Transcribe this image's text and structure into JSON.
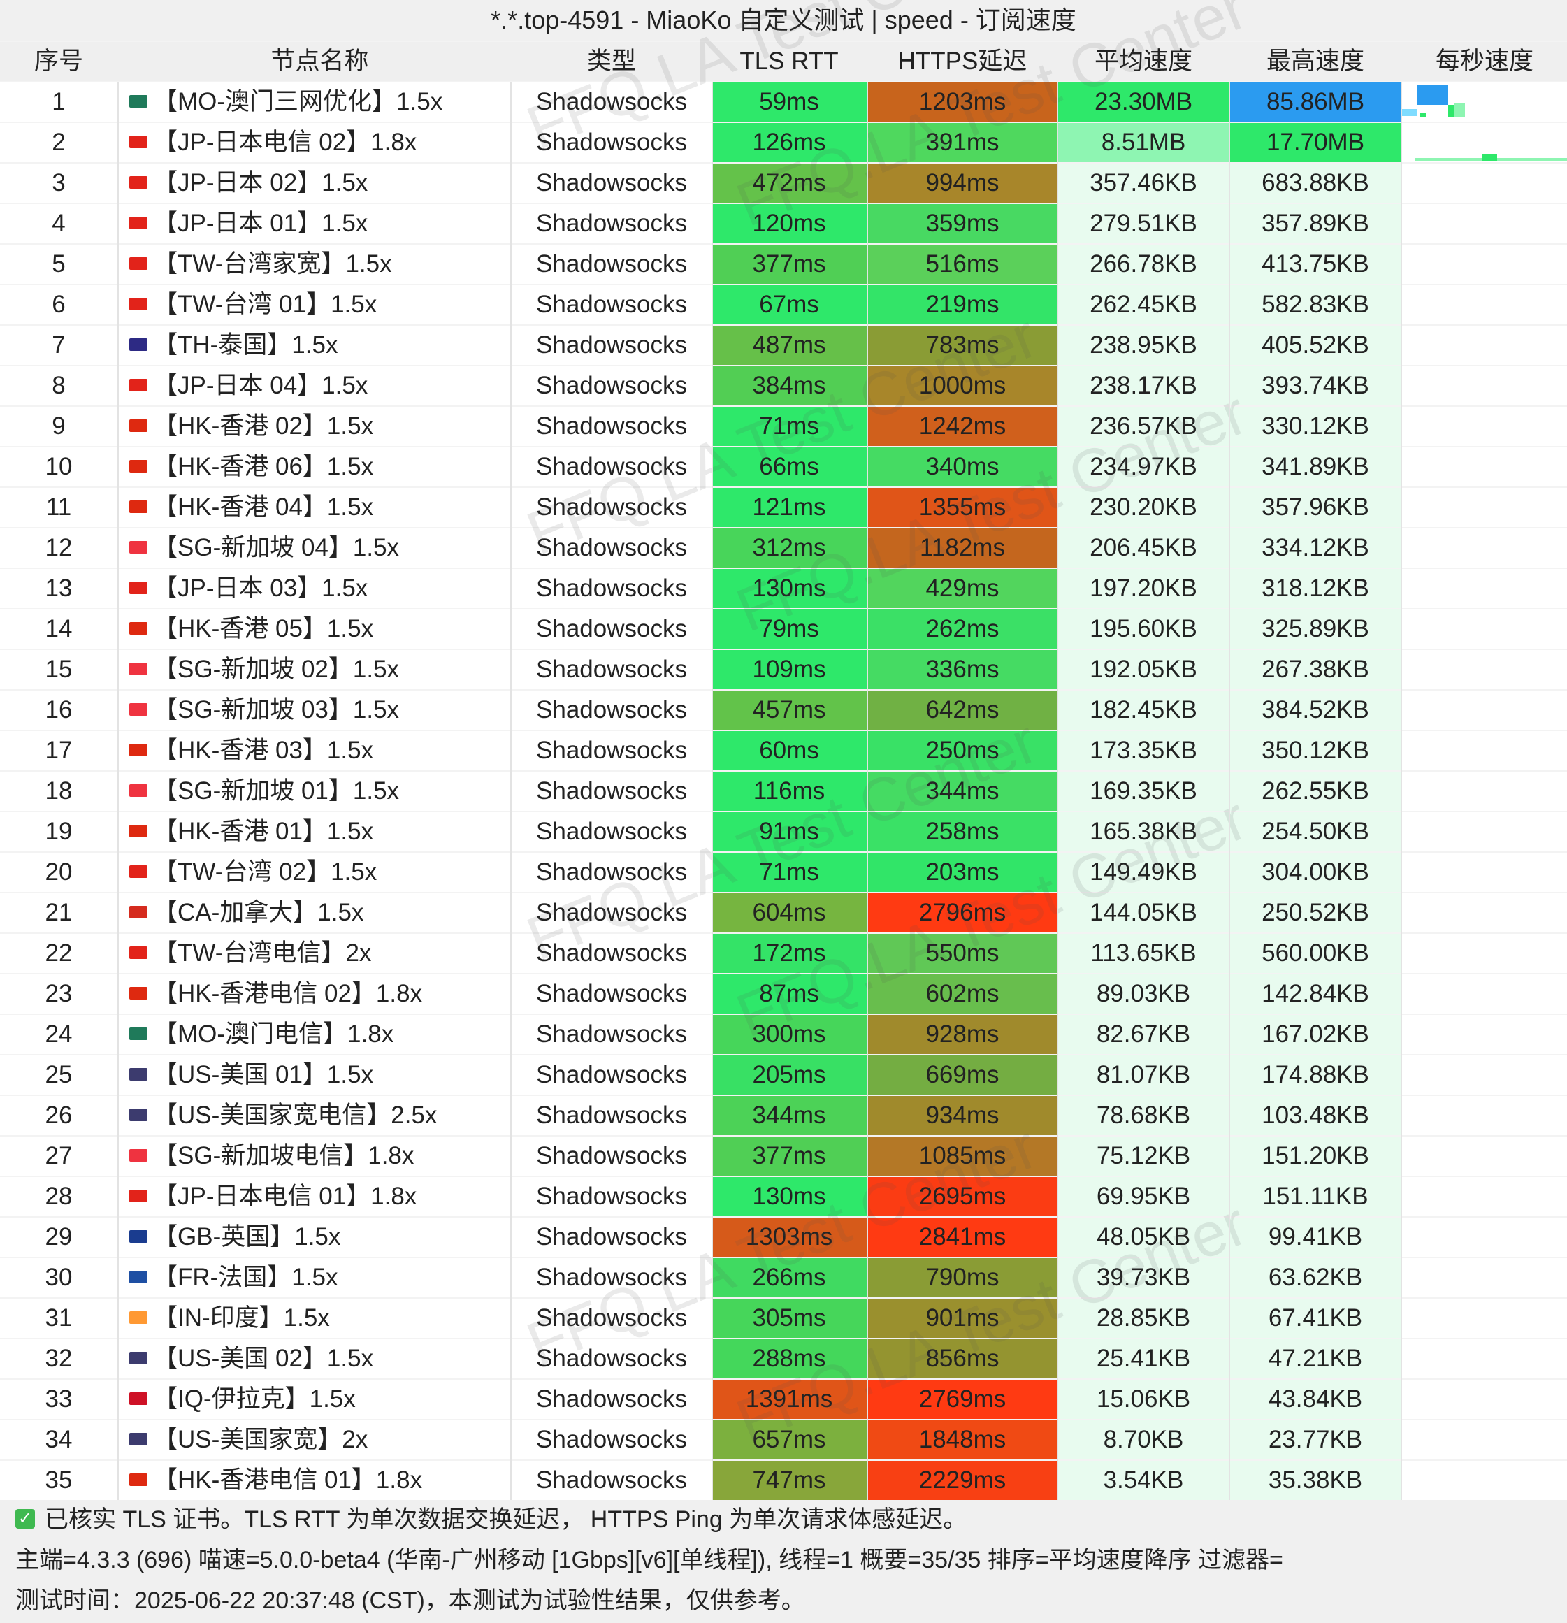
{
  "title": "*.*.top-4591 - MiaoKo 自定义测试 | speed - 订阅速度",
  "columns": {
    "idx": "序号",
    "name": "节点名称",
    "type": "类型",
    "tls": "TLS RTT",
    "https": "HTTPS延迟",
    "avg": "平均速度",
    "max": "最高速度",
    "spark": "每秒速度"
  },
  "flag_colors": {
    "MO": "#1f7a5a",
    "JP": "#e2231a",
    "TW": "#e2231a",
    "TH": "#2d2a84",
    "HK": "#de2910",
    "SG": "#ef3340",
    "CA": "#d52b1e",
    "US": "#3c3b6e",
    "GB": "#1a3c8f",
    "FR": "#1e4fa3",
    "IN": "#ff9933",
    "IQ": "#ce1126"
  },
  "rows": [
    {
      "idx": "1",
      "flag": "MO",
      "name": "【MO-澳门三网优化】1.5x",
      "type": "Shadowsocks",
      "tls": "59ms",
      "https": "1203ms",
      "avg": "23.30MB",
      "max": "85.86MB",
      "tls_color": "#2ee86a",
      "https_color": "#c8641c",
      "avg_color": "#2ee86a",
      "max_color": "#2b9bf0"
    },
    {
      "idx": "2",
      "flag": "JP",
      "name": "【JP-日本电信 02】1.8x",
      "type": "Shadowsocks",
      "tls": "126ms",
      "https": "391ms",
      "avg": "8.51MB",
      "max": "17.70MB",
      "tls_color": "#2ee86a",
      "https_color": "#4fd85e",
      "avg_color": "#8ef5b2",
      "max_color": "#2ee86a"
    },
    {
      "idx": "3",
      "flag": "JP",
      "name": "【JP-日本 02】1.5x",
      "type": "Shadowsocks",
      "tls": "472ms",
      "https": "994ms",
      "avg": "357.46KB",
      "max": "683.88KB",
      "tls_color": "#64c24a",
      "https_color": "#a8862a",
      "avg_color": "#e8fbef",
      "max_color": "#e8fbef"
    },
    {
      "idx": "4",
      "flag": "JP",
      "name": "【JP-日本 01】1.5x",
      "type": "Shadowsocks",
      "tls": "120ms",
      "https": "359ms",
      "avg": "279.51KB",
      "max": "357.89KB",
      "tls_color": "#2ee86a",
      "https_color": "#48d962",
      "avg_color": "#e8fbef",
      "max_color": "#e8fbef"
    },
    {
      "idx": "5",
      "flag": "TW",
      "name": "【TW-台湾家宽】1.5x",
      "type": "Shadowsocks",
      "tls": "377ms",
      "https": "516ms",
      "avg": "266.78KB",
      "max": "413.75KB",
      "tls_color": "#50cf55",
      "https_color": "#5bd05a",
      "avg_color": "#e8fbef",
      "max_color": "#e8fbef"
    },
    {
      "idx": "6",
      "flag": "TW",
      "name": "【TW-台湾 01】1.5x",
      "type": "Shadowsocks",
      "tls": "67ms",
      "https": "219ms",
      "avg": "262.45KB",
      "max": "582.83KB",
      "tls_color": "#2ee86a",
      "https_color": "#33e468",
      "avg_color": "#e8fbef",
      "max_color": "#e8fbef"
    },
    {
      "idx": "7",
      "flag": "TH",
      "name": "【TH-泰国】1.5x",
      "type": "Shadowsocks",
      "tls": "487ms",
      "https": "783ms",
      "avg": "238.95KB",
      "max": "405.52KB",
      "tls_color": "#66c049",
      "https_color": "#8a9c35",
      "avg_color": "#e8fbef",
      "max_color": "#e8fbef"
    },
    {
      "idx": "8",
      "flag": "JP",
      "name": "【JP-日本 04】1.5x",
      "type": "Shadowsocks",
      "tls": "384ms",
      "https": "1000ms",
      "avg": "238.17KB",
      "max": "393.74KB",
      "tls_color": "#52ce54",
      "https_color": "#a8862a",
      "avg_color": "#e8fbef",
      "max_color": "#e8fbef"
    },
    {
      "idx": "9",
      "flag": "HK",
      "name": "【HK-香港 02】1.5x",
      "type": "Shadowsocks",
      "tls": "71ms",
      "https": "1242ms",
      "avg": "236.57KB",
      "max": "330.12KB",
      "tls_color": "#2ee86a",
      "https_color": "#d0601c",
      "avg_color": "#e8fbef",
      "max_color": "#e8fbef"
    },
    {
      "idx": "10",
      "flag": "HK",
      "name": "【HK-香港 06】1.5x",
      "type": "Shadowsocks",
      "tls": "66ms",
      "https": "340ms",
      "avg": "234.97KB",
      "max": "341.89KB",
      "tls_color": "#2ee86a",
      "https_color": "#45db63",
      "avg_color": "#e8fbef",
      "max_color": "#e8fbef"
    },
    {
      "idx": "11",
      "flag": "HK",
      "name": "【HK-香港 04】1.5x",
      "type": "Shadowsocks",
      "tls": "121ms",
      "https": "1355ms",
      "avg": "230.20KB",
      "max": "357.96KB",
      "tls_color": "#2ee86a",
      "https_color": "#e05518",
      "avg_color": "#e8fbef",
      "max_color": "#e8fbef"
    },
    {
      "idx": "12",
      "flag": "SG",
      "name": "【SG-新加坡 04】1.5x",
      "type": "Shadowsocks",
      "tls": "312ms",
      "https": "1182ms",
      "avg": "206.45KB",
      "max": "334.12KB",
      "tls_color": "#48d55a",
      "https_color": "#c4661e",
      "avg_color": "#e8fbef",
      "max_color": "#e8fbef"
    },
    {
      "idx": "13",
      "flag": "JP",
      "name": "【JP-日本 03】1.5x",
      "type": "Shadowsocks",
      "tls": "130ms",
      "https": "429ms",
      "avg": "197.20KB",
      "max": "318.12KB",
      "tls_color": "#2ee86a",
      "https_color": "#52d55d",
      "avg_color": "#e8fbef",
      "max_color": "#e8fbef"
    },
    {
      "idx": "14",
      "flag": "HK",
      "name": "【HK-香港 05】1.5x",
      "type": "Shadowsocks",
      "tls": "79ms",
      "https": "262ms",
      "avg": "195.60KB",
      "max": "325.89KB",
      "tls_color": "#2ee86a",
      "https_color": "#3be066",
      "avg_color": "#e8fbef",
      "max_color": "#e8fbef"
    },
    {
      "idx": "15",
      "flag": "SG",
      "name": "【SG-新加坡 02】1.5x",
      "type": "Shadowsocks",
      "tls": "109ms",
      "https": "336ms",
      "avg": "192.05KB",
      "max": "267.38KB",
      "tls_color": "#2ee86a",
      "https_color": "#45db63",
      "avg_color": "#e8fbef",
      "max_color": "#e8fbef"
    },
    {
      "idx": "16",
      "flag": "SG",
      "name": "【SG-新加坡 03】1.5x",
      "type": "Shadowsocks",
      "tls": "457ms",
      "https": "642ms",
      "avg": "182.45KB",
      "max": "384.52KB",
      "tls_color": "#62c34a",
      "https_color": "#70b144",
      "avg_color": "#e8fbef",
      "max_color": "#e8fbef"
    },
    {
      "idx": "17",
      "flag": "HK",
      "name": "【HK-香港 03】1.5x",
      "type": "Shadowsocks",
      "tls": "60ms",
      "https": "250ms",
      "avg": "173.35KB",
      "max": "350.12KB",
      "tls_color": "#2ee86a",
      "https_color": "#39e166",
      "avg_color": "#e8fbef",
      "max_color": "#e8fbef"
    },
    {
      "idx": "18",
      "flag": "SG",
      "name": "【SG-新加坡 01】1.5x",
      "type": "Shadowsocks",
      "tls": "116ms",
      "https": "344ms",
      "avg": "169.35KB",
      "max": "262.55KB",
      "tls_color": "#2ee86a",
      "https_color": "#45db63",
      "avg_color": "#e8fbef",
      "max_color": "#e8fbef"
    },
    {
      "idx": "19",
      "flag": "HK",
      "name": "【HK-香港 01】1.5x",
      "type": "Shadowsocks",
      "tls": "91ms",
      "https": "258ms",
      "avg": "165.38KB",
      "max": "254.50KB",
      "tls_color": "#2ee86a",
      "https_color": "#3ae166",
      "avg_color": "#e8fbef",
      "max_color": "#e8fbef"
    },
    {
      "idx": "20",
      "flag": "TW",
      "name": "【TW-台湾 02】1.5x",
      "type": "Shadowsocks",
      "tls": "71ms",
      "https": "203ms",
      "avg": "149.49KB",
      "max": "304.00KB",
      "tls_color": "#2ee86a",
      "https_color": "#31e568",
      "avg_color": "#e8fbef",
      "max_color": "#e8fbef"
    },
    {
      "idx": "21",
      "flag": "CA",
      "name": "【CA-加拿大】1.5x",
      "type": "Shadowsocks",
      "tls": "604ms",
      "https": "2796ms",
      "avg": "144.05KB",
      "max": "250.52KB",
      "tls_color": "#76b540",
      "https_color": "#ff3a12",
      "avg_color": "#e8fbef",
      "max_color": "#e8fbef"
    },
    {
      "idx": "22",
      "flag": "TW",
      "name": "【TW-台湾电信】2x",
      "type": "Shadowsocks",
      "tls": "172ms",
      "https": "550ms",
      "avg": "113.65KB",
      "max": "560.00KB",
      "tls_color": "#34e367",
      "https_color": "#60c856",
      "avg_color": "#e8fbef",
      "max_color": "#e8fbef"
    },
    {
      "idx": "23",
      "flag": "HK",
      "name": "【HK-香港电信 02】1.8x",
      "type": "Shadowsocks",
      "tls": "87ms",
      "https": "602ms",
      "avg": "89.03KB",
      "max": "142.84KB",
      "tls_color": "#2ee86a",
      "https_color": "#68be4d",
      "avg_color": "#e8fbef",
      "max_color": "#e8fbef"
    },
    {
      "idx": "24",
      "flag": "MO",
      "name": "【MO-澳门电信】1.8x",
      "type": "Shadowsocks",
      "tls": "300ms",
      "https": "928ms",
      "avg": "82.67KB",
      "max": "167.02KB",
      "tls_color": "#46d65a",
      "https_color": "#a08a2c",
      "avg_color": "#e8fbef",
      "max_color": "#e8fbef"
    },
    {
      "idx": "25",
      "flag": "US",
      "name": "【US-美国 01】1.5x",
      "type": "Shadowsocks",
      "tls": "205ms",
      "https": "669ms",
      "avg": "81.07KB",
      "max": "174.88KB",
      "tls_color": "#38e064",
      "https_color": "#74ad42",
      "avg_color": "#e8fbef",
      "max_color": "#e8fbef"
    },
    {
      "idx": "26",
      "flag": "US",
      "name": "【US-美国家宽电信】2.5x",
      "type": "Shadowsocks",
      "tls": "344ms",
      "https": "934ms",
      "avg": "78.68KB",
      "max": "103.48KB",
      "tls_color": "#4cd257",
      "https_color": "#a08a2c",
      "avg_color": "#e8fbef",
      "max_color": "#e8fbef"
    },
    {
      "idx": "27",
      "flag": "SG",
      "name": "【SG-新加坡电信】1.8x",
      "type": "Shadowsocks",
      "tls": "377ms",
      "https": "1085ms",
      "avg": "75.12KB",
      "max": "151.20KB",
      "tls_color": "#50cf55",
      "https_color": "#b47826",
      "avg_color": "#e8fbef",
      "max_color": "#e8fbef"
    },
    {
      "idx": "28",
      "flag": "JP",
      "name": "【JP-日本电信 01】1.8x",
      "type": "Shadowsocks",
      "tls": "130ms",
      "https": "2695ms",
      "avg": "69.95KB",
      "max": "151.11KB",
      "tls_color": "#2ee86a",
      "https_color": "#fb3c13",
      "avg_color": "#e8fbef",
      "max_color": "#e8fbef"
    },
    {
      "idx": "29",
      "flag": "GB",
      "name": "【GB-英国】1.5x",
      "type": "Shadowsocks",
      "tls": "1303ms",
      "https": "2841ms",
      "avg": "48.05KB",
      "max": "99.41KB",
      "tls_color": "#d65a1a",
      "https_color": "#ff3a12",
      "avg_color": "#e8fbef",
      "max_color": "#e8fbef"
    },
    {
      "idx": "30",
      "flag": "FR",
      "name": "【FR-法国】1.5x",
      "type": "Shadowsocks",
      "tls": "266ms",
      "https": "790ms",
      "avg": "39.73KB",
      "max": "63.62KB",
      "tls_color": "#40da61",
      "https_color": "#8a9c35",
      "avg_color": "#e8fbef",
      "max_color": "#e8fbef"
    },
    {
      "idx": "31",
      "flag": "IN",
      "name": "【IN-印度】1.5x",
      "type": "Shadowsocks",
      "tls": "305ms",
      "https": "901ms",
      "avg": "28.85KB",
      "max": "67.41KB",
      "tls_color": "#46d65a",
      "https_color": "#9a902e",
      "avg_color": "#e8fbef",
      "max_color": "#e8fbef"
    },
    {
      "idx": "32",
      "flag": "US",
      "name": "【US-美国 02】1.5x",
      "type": "Shadowsocks",
      "tls": "288ms",
      "https": "856ms",
      "avg": "25.41KB",
      "max": "47.21KB",
      "tls_color": "#44d75b",
      "https_color": "#949430",
      "avg_color": "#e8fbef",
      "max_color": "#e8fbef"
    },
    {
      "idx": "33",
      "flag": "IQ",
      "name": "【IQ-伊拉克】1.5x",
      "type": "Shadowsocks",
      "tls": "1391ms",
      "https": "2769ms",
      "avg": "15.06KB",
      "max": "43.84KB",
      "tls_color": "#e05518",
      "https_color": "#ff3a12",
      "avg_color": "#e8fbef",
      "max_color": "#e8fbef"
    },
    {
      "idx": "34",
      "flag": "US",
      "name": "【US-美国家宽】2x",
      "type": "Shadowsocks",
      "tls": "657ms",
      "https": "1848ms",
      "avg": "8.70KB",
      "max": "23.77KB",
      "tls_color": "#7cb03e",
      "https_color": "#f04a14",
      "avg_color": "#e8fbef",
      "max_color": "#e8fbef"
    },
    {
      "idx": "35",
      "flag": "HK",
      "name": "【HK-香港电信 01】1.8x",
      "type": "Shadowsocks",
      "tls": "747ms",
      "https": "2229ms",
      "avg": "3.54KB",
      "max": "35.38KB",
      "tls_color": "#88a63a",
      "https_color": "#f84013",
      "avg_color": "#e8fbef",
      "max_color": "#e8fbef"
    }
  ],
  "watermark": "FFQ.LA Test Center",
  "footer": {
    "line1": "已核实 TLS 证书。TLS RTT 为单次数据交换延迟， HTTPS Ping 为单次请求体感延迟。",
    "line2": "主端=4.3.3 (696) 喵速=5.0.0-beta4 (华南-广州移动 [1Gbps][v6][单线程]), 线程=1 概要=35/35 排序=平均速度降序 过滤器=",
    "line3": "测试时间：2025-06-22 20:37:48 (CST)，本测试为试验性结果，仅供参考。"
  }
}
